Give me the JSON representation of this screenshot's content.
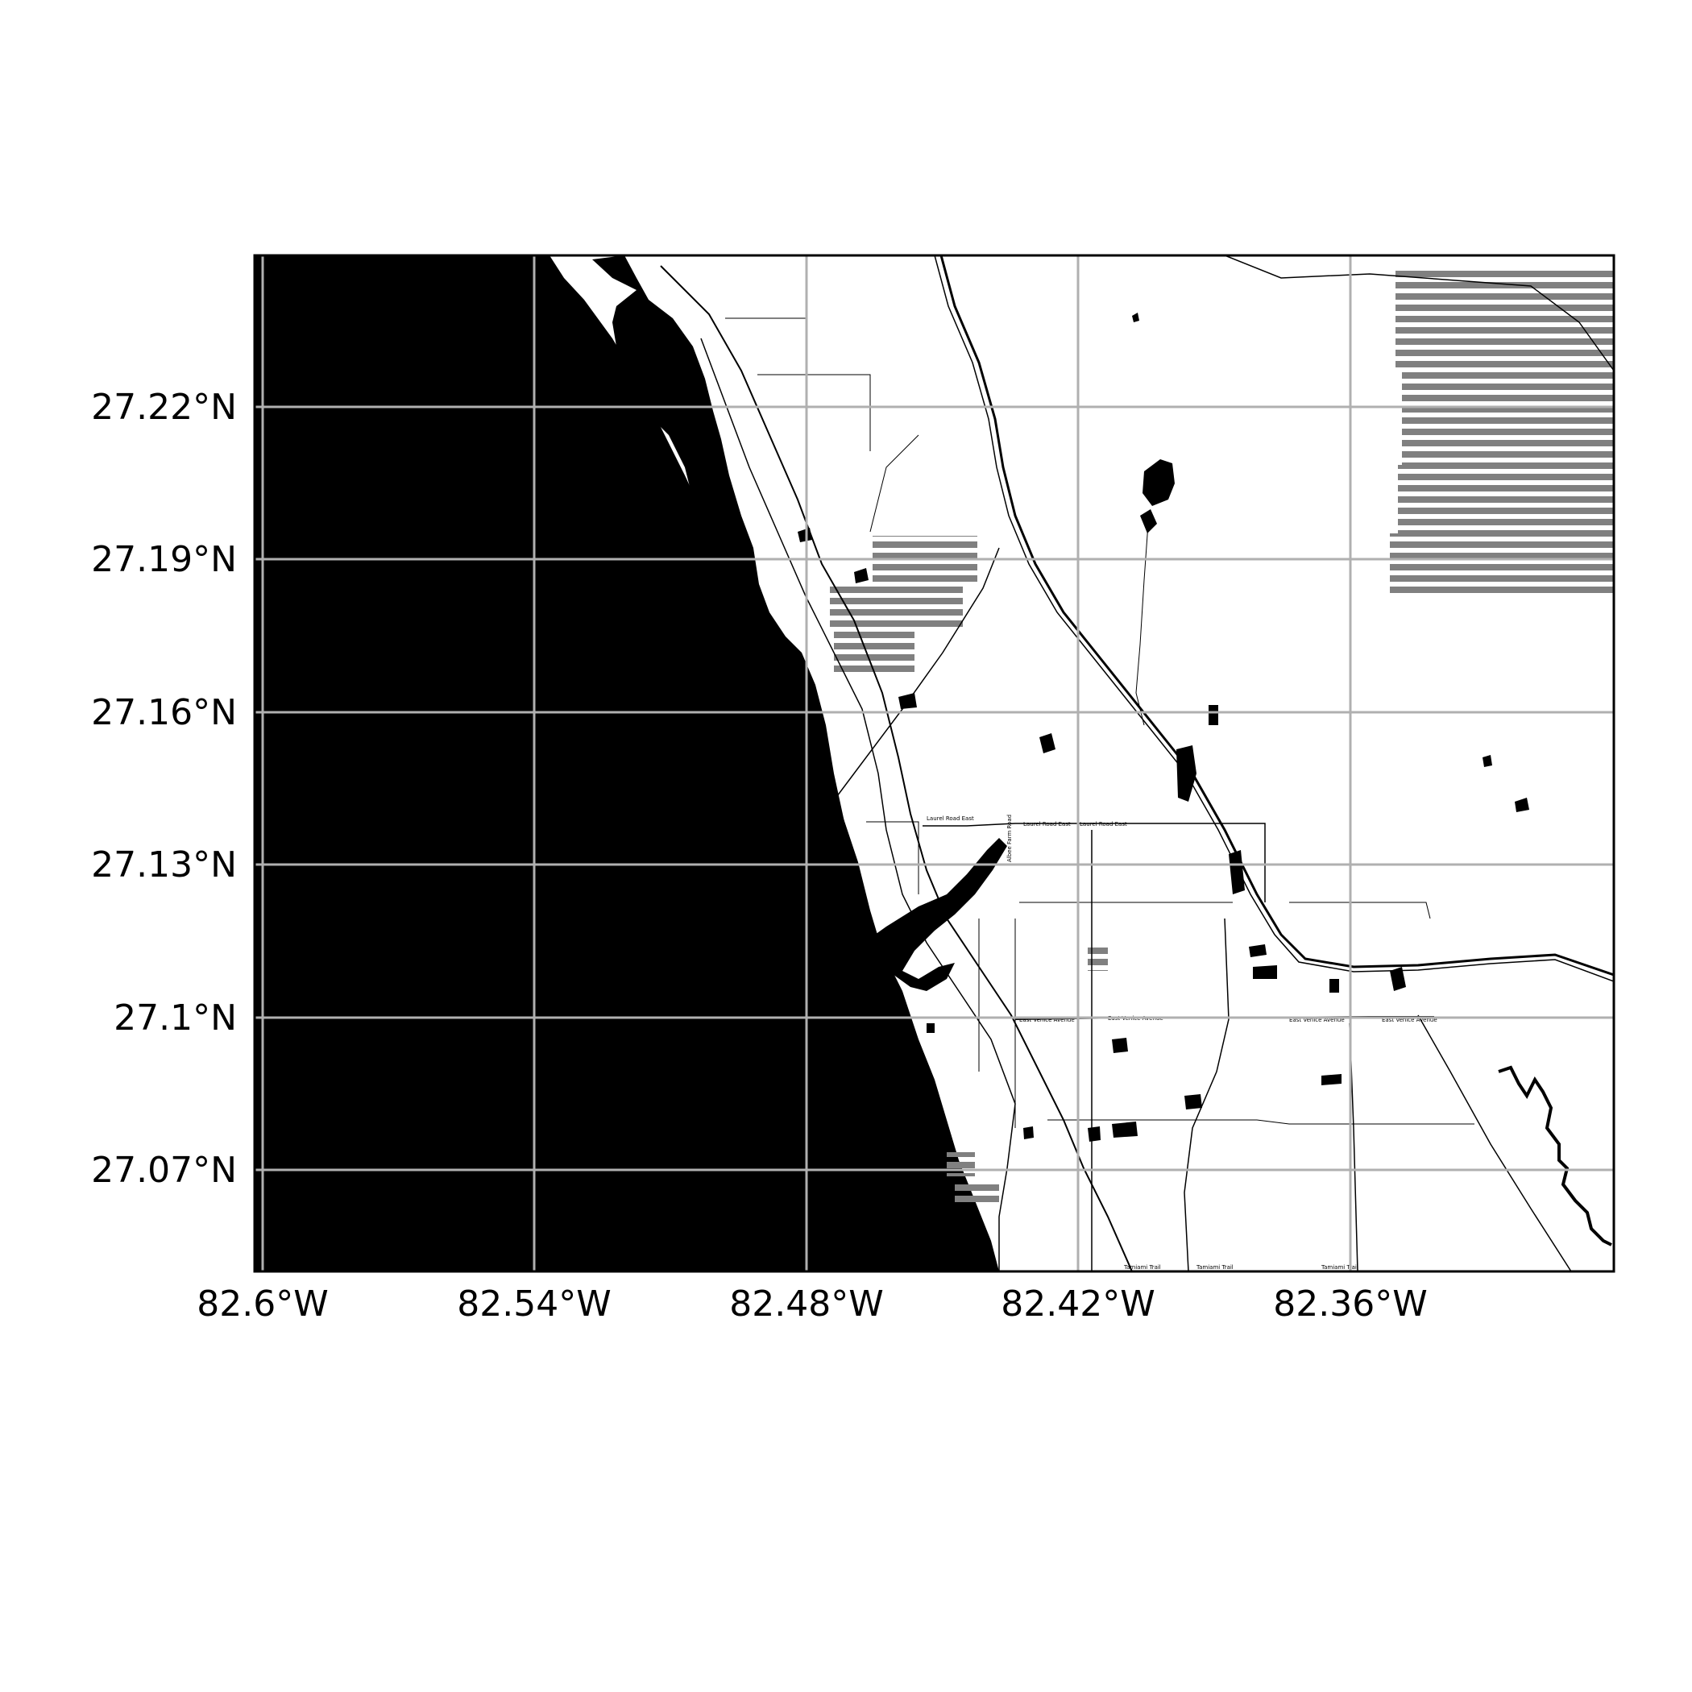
{
  "map": {
    "colors": {
      "water": "#000000",
      "land": "#ffffff",
      "gridlines": "#b0b0b0",
      "hatch": "#808080",
      "roads": "#000000",
      "frame": "#000000"
    },
    "x_ticks": [
      "82.6°W",
      "82.54°W",
      "82.48°W",
      "82.42°W",
      "82.36°W"
    ],
    "y_ticks": [
      "27.22°N",
      "27.19°N",
      "27.16°N",
      "27.13°N",
      "27.1°N",
      "27.07°N"
    ],
    "road_labels": [
      "Laurel Road East",
      "Laurel Road East",
      "Laurel Road East",
      "East Venice Avenue",
      "East Venice Avenue",
      "East Venice Avenue",
      "East Venice Avenue",
      "Tamiami Trail",
      "Tamiami Trail",
      "Tamiami Trail",
      "Albee Farm Road"
    ]
  }
}
